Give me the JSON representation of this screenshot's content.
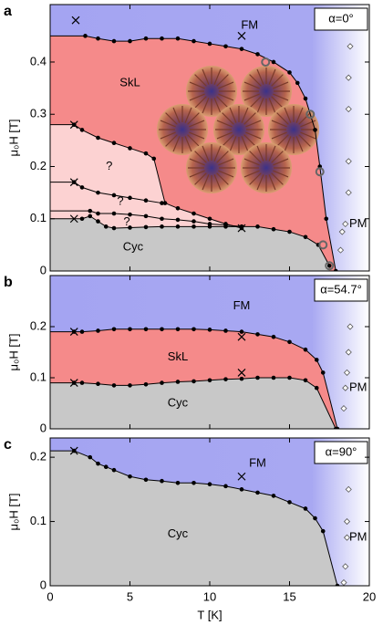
{
  "chart_data": [
    {
      "type": "phase",
      "panel": "a",
      "label_box": "α=0°",
      "y_label": "μ₀H [T]",
      "xlim": [
        0,
        20
      ],
      "ylim": [
        0,
        0.51
      ],
      "xticks": [
        0,
        5,
        10,
        15,
        20
      ],
      "yticks": [
        0,
        0.1,
        0.2,
        0.3,
        0.4
      ],
      "regions": [
        "FM",
        "SkL",
        "?",
        "?",
        "?",
        "Cyc",
        "PM"
      ],
      "series": [
        {
          "fill": "#f58a8a",
          "line": true,
          "marker": "dot",
          "x": [
            2.2,
            3,
            4,
            5,
            6,
            7,
            8,
            9,
            10,
            11,
            12,
            13,
            14,
            15,
            15.5,
            16,
            16.6,
            16.9,
            17.3,
            17.9
          ],
          "values": [
            0.45,
            0.445,
            0.44,
            0.44,
            0.445,
            0.445,
            0.445,
            0.44,
            0.435,
            0.43,
            0.425,
            0.415,
            0.4,
            0.38,
            0.36,
            0.33,
            0.27,
            0.2,
            0.1,
            0
          ]
        },
        {
          "fill": "#fcd2d2",
          "line": true,
          "marker": "dot",
          "x": [
            1.5,
            2,
            3,
            4,
            5,
            6,
            6.5,
            7.2,
            8,
            9,
            10,
            11,
            12
          ],
          "values": [
            0.28,
            0.27,
            0.255,
            0.245,
            0.235,
            0.225,
            0.215,
            0.13,
            0.12,
            0.11,
            0.1,
            0.09,
            0.082
          ]
        },
        {
          "line": true,
          "marker": "dot",
          "x": [
            1.5,
            2,
            3,
            4,
            5,
            6,
            7
          ],
          "values": [
            0.17,
            0.16,
            0.15,
            0.145,
            0.14,
            0.135,
            0.13
          ]
        },
        {
          "line": true,
          "marker": "dot",
          "x": [
            2.5,
            3,
            4,
            5,
            6,
            7,
            8,
            9,
            10,
            11,
            12
          ],
          "values": [
            0.115,
            0.11,
            0.11,
            0.108,
            0.105,
            0.1,
            0.098,
            0.095,
            0.09,
            0.088,
            0.085
          ]
        },
        {
          "fill": "#c8c8c8",
          "line": true,
          "marker": "dot",
          "x": [
            2,
            2.5,
            3,
            3.5,
            4,
            5,
            6,
            7,
            8,
            9,
            10,
            11,
            12,
            13,
            14,
            15,
            16,
            16.8,
            17.5
          ],
          "values": [
            0.1,
            0.105,
            0.095,
            0.085,
            0.082,
            0.083,
            0.084,
            0.085,
            0.085,
            0.085,
            0.085,
            0.085,
            0.085,
            0.085,
            0.08,
            0.075,
            0.065,
            0.05,
            0.01
          ]
        },
        {
          "marker": "x",
          "x": [
            1.6,
            12,
            1.5,
            1.5,
            1.5,
            12
          ],
          "values": [
            0.48,
            0.45,
            0.28,
            0.17,
            0.1,
            0.082
          ]
        },
        {
          "marker": "circle",
          "x": [
            13.5,
            16.3,
            16.9,
            17.1,
            17.5
          ],
          "values": [
            0.4,
            0.3,
            0.19,
            0.05,
            0.01
          ]
        },
        {
          "marker": "diamond",
          "x": [
            18.8,
            18.7,
            18.7,
            18.7,
            18.7,
            18.5,
            18.3,
            18.2
          ],
          "values": [
            0.43,
            0.37,
            0.31,
            0.21,
            0.15,
            0.09,
            0.075,
            0.04
          ]
        }
      ]
    },
    {
      "type": "phase",
      "panel": "b",
      "label_box": "α=54.7°",
      "y_label": "μ₀H [T]",
      "xlim": [
        0,
        20
      ],
      "ylim": [
        0,
        0.3
      ],
      "xticks": [
        0,
        5,
        10,
        15,
        20
      ],
      "yticks": [
        0,
        0.1,
        0.2
      ],
      "regions": [
        "FM",
        "SkL",
        "Cyc",
        "PM"
      ],
      "series": [
        {
          "fill": "#f58a8a",
          "line": true,
          "marker": "dot",
          "x": [
            1.5,
            2,
            3,
            4,
            5,
            6,
            7,
            8,
            9,
            10,
            11,
            12,
            13,
            14,
            15,
            16,
            16.7,
            17.1,
            18
          ],
          "values": [
            0.19,
            0.19,
            0.192,
            0.195,
            0.195,
            0.195,
            0.195,
            0.195,
            0.195,
            0.194,
            0.192,
            0.19,
            0.185,
            0.18,
            0.17,
            0.155,
            0.135,
            0.11,
            0
          ]
        },
        {
          "fill": "#c8c8c8",
          "line": true,
          "marker": "dot",
          "x": [
            1.5,
            2,
            3,
            4,
            5,
            6,
            7,
            8,
            9,
            10,
            11,
            12,
            13,
            14,
            15,
            16,
            16.7,
            17.9
          ],
          "values": [
            0.09,
            0.09,
            0.088,
            0.085,
            0.085,
            0.087,
            0.09,
            0.092,
            0.093,
            0.095,
            0.097,
            0.098,
            0.1,
            0.1,
            0.1,
            0.095,
            0.08,
            0
          ]
        },
        {
          "marker": "x",
          "x": [
            1.5,
            12,
            1.5,
            12
          ],
          "values": [
            0.19,
            0.18,
            0.09,
            0.11
          ]
        },
        {
          "marker": "diamond",
          "x": [
            18.8,
            18.7,
            18.6,
            18.5,
            18.4
          ],
          "values": [
            0.2,
            0.15,
            0.11,
            0.08,
            0.04
          ]
        }
      ]
    },
    {
      "type": "phase",
      "panel": "c",
      "label_box": "α=90°",
      "y_label": "μ₀H [T]",
      "x_label": "T [K]",
      "xlim": [
        0,
        20
      ],
      "ylim": [
        0,
        0.23
      ],
      "xticks": [
        0,
        5,
        10,
        15,
        20
      ],
      "yticks": [
        0,
        0.1,
        0.2
      ],
      "regions": [
        "FM",
        "Cyc",
        "PM"
      ],
      "series": [
        {
          "fill": "#c8c8c8",
          "line": true,
          "marker": "dot",
          "x": [
            1.5,
            2.5,
            3,
            3.5,
            4,
            5,
            6,
            7,
            8,
            9,
            10,
            11,
            12,
            13,
            14,
            15,
            16,
            16.6,
            17.1,
            18
          ],
          "values": [
            0.21,
            0.2,
            0.19,
            0.185,
            0.18,
            0.17,
            0.165,
            0.163,
            0.16,
            0.16,
            0.158,
            0.155,
            0.15,
            0.145,
            0.14,
            0.13,
            0.12,
            0.105,
            0.085,
            0
          ]
        },
        {
          "marker": "x",
          "x": [
            1.5,
            12
          ],
          "values": [
            0.21,
            0.17
          ]
        },
        {
          "marker": "diamond",
          "x": [
            18.7,
            18.7,
            18.6,
            18.6,
            18.5,
            18.4
          ],
          "values": [
            0.2,
            0.15,
            0.1,
            0.075,
            0.03,
            0.005
          ]
        }
      ]
    }
  ]
}
